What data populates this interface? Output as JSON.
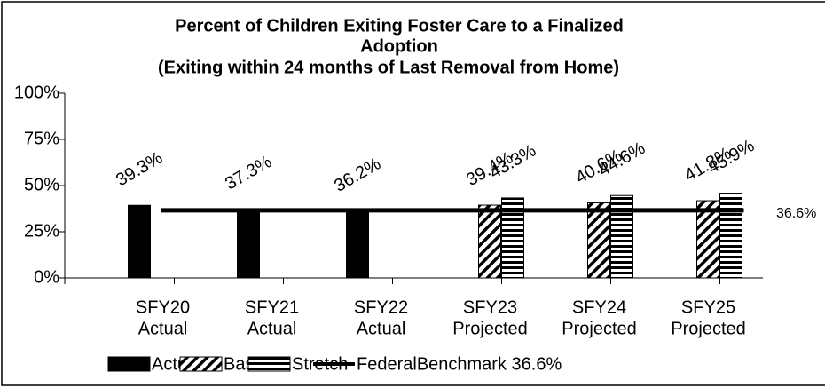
{
  "chart_data": {
    "type": "bar",
    "title": [
      "Percent of Children Exiting Foster Care to a Finalized",
      "Adoption",
      "(Exiting within 24 months of Last Removal from Home)"
    ],
    "categories": [
      [
        "SFY20",
        "Actual"
      ],
      [
        "SFY21",
        "Actual"
      ],
      [
        "SFY22",
        "Actual"
      ],
      [
        "SFY23",
        "Projected"
      ],
      [
        "SFY24",
        "Projected"
      ],
      [
        "SFY25",
        "Projected"
      ]
    ],
    "ylim": [
      0,
      100
    ],
    "yticks": [
      {
        "value": 0,
        "label": "0%"
      },
      {
        "value": 25,
        "label": "25%"
      },
      {
        "value": 50,
        "label": "50%"
      },
      {
        "value": 75,
        "label": "75%"
      },
      {
        "value": 100,
        "label": "100%"
      }
    ],
    "series": [
      {
        "name": "Actual",
        "color": "#000000",
        "pattern": "solid",
        "values": [
          39.3,
          37.3,
          36.2,
          null,
          null,
          null
        ],
        "value_labels": [
          "39.3%",
          "37.3%",
          "36.2%",
          null,
          null,
          null
        ]
      },
      {
        "name": "Base",
        "color": "#000000",
        "pattern": "diagonal",
        "values": [
          null,
          null,
          null,
          39.4,
          40.6,
          41.8
        ],
        "value_labels": [
          null,
          null,
          null,
          "39.4%",
          "40.6%",
          "41.8%"
        ]
      },
      {
        "name": "Stretch",
        "color": "#000000",
        "pattern": "horizontal",
        "values": [
          null,
          null,
          null,
          43.3,
          44.6,
          45.9
        ],
        "value_labels": [
          null,
          null,
          null,
          "43.3%",
          "44.6%",
          "45.9%"
        ]
      },
      {
        "name": "FederalBenchmark 36.6%",
        "type": "line",
        "color": "#000000",
        "values": [
          36.6,
          36.6,
          36.6,
          36.6,
          36.6,
          36.6
        ],
        "value_labels": [
          null,
          null,
          null,
          null,
          null,
          "36.6%"
        ]
      }
    ],
    "legend": "bottom"
  }
}
